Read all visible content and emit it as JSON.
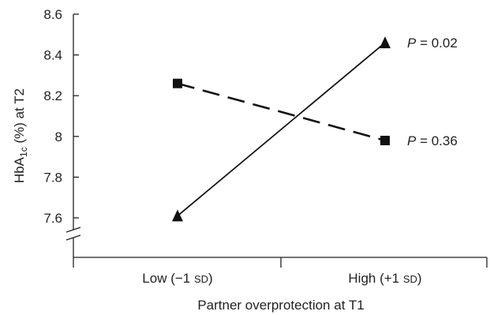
{
  "chart_data": {
    "type": "line",
    "xlabel": "Partner overprotection at T1",
    "ylabel": "HbA1c (%) at T2",
    "ylabel_parts": {
      "pre": "HbA",
      "sub": "1c",
      "post": " (%) at T2"
    },
    "categories": [
      "Low (−1 SD)",
      "High (+1 SD)"
    ],
    "category_parts": [
      {
        "pre": "Low (−1 ",
        "sc": "SD",
        "post": ")"
      },
      {
        "pre": "High (+1 ",
        "sc": "SD",
        "post": ")"
      }
    ],
    "ylim": [
      7.6,
      8.6
    ],
    "yticks": [
      "7.6",
      "7.8",
      "8",
      "8.2",
      "8.4",
      "8.6"
    ],
    "axis_break": true,
    "grid": false,
    "series": [
      {
        "values": [
          7.61,
          8.46
        ],
        "marker": "triangle",
        "line_style": "solid",
        "annotation": {
          "italic": "P",
          "text": " = 0.02"
        }
      },
      {
        "values": [
          8.26,
          7.98
        ],
        "marker": "square",
        "line_style": "dashed",
        "annotation": {
          "italic": "P",
          "text": " = 0.36"
        }
      }
    ],
    "colors": {
      "ink": "#111111",
      "axis": "#222222"
    }
  }
}
